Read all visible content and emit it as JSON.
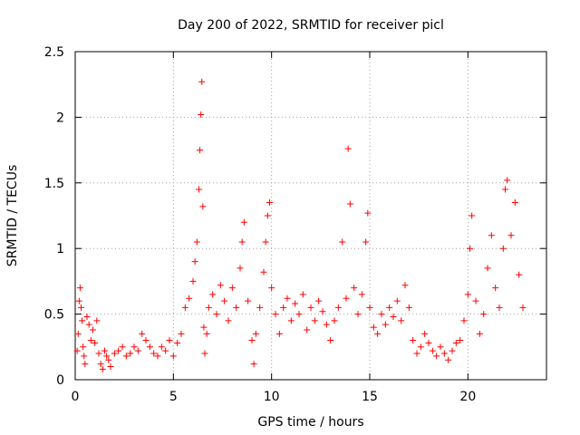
{
  "chart_data": {
    "type": "scatter",
    "title": "Day 200 of 2022, SRMTID for receiver picl",
    "xlabel": "GPS time / hours",
    "ylabel": "SRMTID / TECUs",
    "xlim": [
      0,
      24
    ],
    "ylim": [
      0,
      2.5
    ],
    "x_ticks": [
      0,
      5,
      10,
      15,
      20
    ],
    "x_tick_labels": [
      "0",
      "5",
      "10",
      "15",
      "20"
    ],
    "y_ticks": [
      0,
      0.5,
      1,
      1.5,
      2,
      2.5
    ],
    "y_tick_labels": [
      "0",
      "0.5",
      "1",
      "1.5",
      "2",
      "2.5"
    ],
    "grid": true,
    "marker": "+",
    "marker_color": "#ff0000",
    "series": [
      {
        "name": "SRMTID",
        "points": [
          [
            0.1,
            0.22
          ],
          [
            0.15,
            0.35
          ],
          [
            0.2,
            0.6
          ],
          [
            0.25,
            0.7
          ],
          [
            0.3,
            0.55
          ],
          [
            0.35,
            0.45
          ],
          [
            0.4,
            0.25
          ],
          [
            0.45,
            0.18
          ],
          [
            0.5,
            0.12
          ],
          [
            0.6,
            0.48
          ],
          [
            0.7,
            0.42
          ],
          [
            0.8,
            0.3
          ],
          [
            0.9,
            0.38
          ],
          [
            1.0,
            0.28
          ],
          [
            1.1,
            0.45
          ],
          [
            1.2,
            0.2
          ],
          [
            1.3,
            0.12
          ],
          [
            1.4,
            0.08
          ],
          [
            1.5,
            0.22
          ],
          [
            1.6,
            0.18
          ],
          [
            1.7,
            0.15
          ],
          [
            1.8,
            0.1
          ],
          [
            2.0,
            0.2
          ],
          [
            2.2,
            0.22
          ],
          [
            2.4,
            0.25
          ],
          [
            2.6,
            0.18
          ],
          [
            2.8,
            0.2
          ],
          [
            3.0,
            0.25
          ],
          [
            3.2,
            0.22
          ],
          [
            3.4,
            0.35
          ],
          [
            3.6,
            0.3
          ],
          [
            3.8,
            0.25
          ],
          [
            4.0,
            0.2
          ],
          [
            4.2,
            0.18
          ],
          [
            4.4,
            0.25
          ],
          [
            4.6,
            0.22
          ],
          [
            4.8,
            0.3
          ],
          [
            5.0,
            0.18
          ],
          [
            5.2,
            0.28
          ],
          [
            5.4,
            0.35
          ],
          [
            5.6,
            0.55
          ],
          [
            5.8,
            0.62
          ],
          [
            6.0,
            0.75
          ],
          [
            6.1,
            0.9
          ],
          [
            6.2,
            1.05
          ],
          [
            6.3,
            1.45
          ],
          [
            6.35,
            1.75
          ],
          [
            6.4,
            2.02
          ],
          [
            6.45,
            2.27
          ],
          [
            6.5,
            1.32
          ],
          [
            6.55,
            0.4
          ],
          [
            6.6,
            0.2
          ],
          [
            6.7,
            0.35
          ],
          [
            6.8,
            0.55
          ],
          [
            7.0,
            0.65
          ],
          [
            7.2,
            0.5
          ],
          [
            7.4,
            0.72
          ],
          [
            7.6,
            0.6
          ],
          [
            7.8,
            0.45
          ],
          [
            8.0,
            0.7
          ],
          [
            8.2,
            0.55
          ],
          [
            8.4,
            0.85
          ],
          [
            8.5,
            1.05
          ],
          [
            8.6,
            1.2
          ],
          [
            8.8,
            0.6
          ],
          [
            9.0,
            0.3
          ],
          [
            9.1,
            0.12
          ],
          [
            9.2,
            0.35
          ],
          [
            9.4,
            0.55
          ],
          [
            9.6,
            0.82
          ],
          [
            9.7,
            1.05
          ],
          [
            9.8,
            1.25
          ],
          [
            9.9,
            1.35
          ],
          [
            10.0,
            0.7
          ],
          [
            10.2,
            0.5
          ],
          [
            10.4,
            0.35
          ],
          [
            10.6,
            0.55
          ],
          [
            10.8,
            0.62
          ],
          [
            11.0,
            0.45
          ],
          [
            11.2,
            0.58
          ],
          [
            11.4,
            0.5
          ],
          [
            11.6,
            0.65
          ],
          [
            11.8,
            0.38
          ],
          [
            12.0,
            0.55
          ],
          [
            12.2,
            0.45
          ],
          [
            12.4,
            0.6
          ],
          [
            12.6,
            0.52
          ],
          [
            12.8,
            0.42
          ],
          [
            13.0,
            0.3
          ],
          [
            13.2,
            0.45
          ],
          [
            13.4,
            0.55
          ],
          [
            13.6,
            1.05
          ],
          [
            13.8,
            0.62
          ],
          [
            13.9,
            1.76
          ],
          [
            14.0,
            1.34
          ],
          [
            14.2,
            0.7
          ],
          [
            14.4,
            0.5
          ],
          [
            14.6,
            0.65
          ],
          [
            14.8,
            1.05
          ],
          [
            14.9,
            1.27
          ],
          [
            15.0,
            0.55
          ],
          [
            15.2,
            0.4
          ],
          [
            15.4,
            0.35
          ],
          [
            15.6,
            0.5
          ],
          [
            15.8,
            0.42
          ],
          [
            16.0,
            0.55
          ],
          [
            16.2,
            0.48
          ],
          [
            16.4,
            0.6
          ],
          [
            16.6,
            0.45
          ],
          [
            16.8,
            0.72
          ],
          [
            17.0,
            0.55
          ],
          [
            17.2,
            0.3
          ],
          [
            17.4,
            0.2
          ],
          [
            17.6,
            0.25
          ],
          [
            17.8,
            0.35
          ],
          [
            18.0,
            0.28
          ],
          [
            18.2,
            0.22
          ],
          [
            18.4,
            0.18
          ],
          [
            18.6,
            0.25
          ],
          [
            18.8,
            0.2
          ],
          [
            19.0,
            0.15
          ],
          [
            19.2,
            0.22
          ],
          [
            19.4,
            0.28
          ],
          [
            19.6,
            0.3
          ],
          [
            19.8,
            0.45
          ],
          [
            20.0,
            0.65
          ],
          [
            20.1,
            1.0
          ],
          [
            20.2,
            1.25
          ],
          [
            20.4,
            0.6
          ],
          [
            20.6,
            0.35
          ],
          [
            20.8,
            0.5
          ],
          [
            21.0,
            0.85
          ],
          [
            21.2,
            1.1
          ],
          [
            21.4,
            0.7
          ],
          [
            21.6,
            0.55
          ],
          [
            21.8,
            1.0
          ],
          [
            21.9,
            1.45
          ],
          [
            22.0,
            1.52
          ],
          [
            22.2,
            1.1
          ],
          [
            22.4,
            1.35
          ],
          [
            22.6,
            0.8
          ],
          [
            22.8,
            0.55
          ]
        ]
      }
    ]
  }
}
